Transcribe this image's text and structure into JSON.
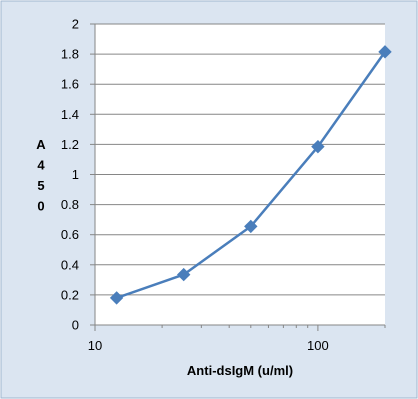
{
  "chart_data": {
    "type": "line",
    "title": "",
    "xlabel": "Anti-dsIgM (u/ml)",
    "ylabel": "A450",
    "ylabel_chars": [
      "A",
      "4",
      "5",
      "0"
    ],
    "x_scale": "log",
    "xlim": [
      10,
      200
    ],
    "ylim": [
      0,
      2
    ],
    "x_ticks": [
      10,
      100
    ],
    "x_tick_labels": [
      "10",
      "100"
    ],
    "y_ticks": [
      0,
      0.2,
      0.4,
      0.6,
      0.8,
      1,
      1.2,
      1.4,
      1.6,
      1.8,
      2
    ],
    "y_tick_labels": [
      "0",
      "0.2",
      "0.4",
      "0.6",
      "0.8",
      "1",
      "1.2",
      "1.4",
      "1.6",
      "1.8",
      "2"
    ],
    "grid": "horizontal major",
    "legend": "none",
    "series": [
      {
        "x": [
          12.5,
          25,
          50,
          100,
          200
        ],
        "y": [
          0.18,
          0.335,
          0.655,
          1.185,
          1.815
        ],
        "marker": "diamond"
      }
    ]
  },
  "colors": {
    "page_background": "#ffffff",
    "chart_area_background": "#dbe5f1",
    "frame_border": "#9fb6cf",
    "plot_background": "#ffffff",
    "gridline": "#868686",
    "axis_line": "#868686",
    "series_line": "#4a7ebb",
    "marker_fill": "#4a7ebb",
    "text": "#000000"
  }
}
